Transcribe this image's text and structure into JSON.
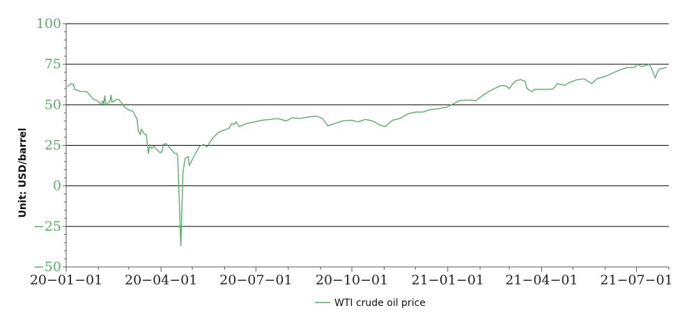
{
  "colors": {
    "series": "#5aaa6a",
    "gridline": "#000000",
    "axis": "#555555",
    "tick_label_y": "#5aaa6a",
    "tick_label_x": "#222222"
  },
  "chart_data": {
    "type": "line",
    "title": "",
    "xlabel": "",
    "ylabel": "Unit: USD/barrel",
    "ylim": [
      -50,
      100
    ],
    "xlim": [
      "2020-01-01",
      "2021-08-01"
    ],
    "yticks": [
      100,
      75,
      50,
      25,
      0,
      -25,
      -50
    ],
    "ytick_labels": [
      "100",
      "75",
      "50",
      "25",
      "0",
      "−25",
      "−50"
    ],
    "xticks": [
      "2020-01-01",
      "2020-04-01",
      "2020-07-01",
      "2020-10-01",
      "2021-01-01",
      "2021-04-01",
      "2021-07-01"
    ],
    "xtick_labels": [
      "20−01−01",
      "20−04−01",
      "20−07−01",
      "20−10−01",
      "21−01−01",
      "21−04−01",
      "21−07−01"
    ],
    "grid": "horizontal",
    "legend": {
      "position": "bottom-center"
    },
    "series": [
      {
        "name": "WTI crude oil price",
        "points": [
          [
            "2020-01-02",
            61.2
          ],
          [
            "2020-01-06",
            63.0
          ],
          [
            "2020-01-08",
            62.5
          ],
          [
            "2020-01-09",
            59.5
          ],
          [
            "2020-01-15",
            58.2
          ],
          [
            "2020-01-21",
            58.0
          ],
          [
            "2020-01-27",
            53.5
          ],
          [
            "2020-01-31",
            52.5
          ],
          [
            "2020-02-04",
            50.0
          ],
          [
            "2020-02-05",
            52.5
          ],
          [
            "2020-02-06",
            50.5
          ],
          [
            "2020-02-07",
            55.5
          ],
          [
            "2020-02-08",
            50.0
          ],
          [
            "2020-02-12",
            52.0
          ],
          [
            "2020-02-13",
            56.0
          ],
          [
            "2020-02-14",
            51.5
          ],
          [
            "2020-02-19",
            53.5
          ],
          [
            "2020-02-21",
            53.0
          ],
          [
            "2020-02-26",
            48.5
          ],
          [
            "2020-03-02",
            46.5
          ],
          [
            "2020-03-05",
            46.0
          ],
          [
            "2020-03-09",
            41.0
          ],
          [
            "2020-03-10",
            34.5
          ],
          [
            "2020-03-12",
            31.5
          ],
          [
            "2020-03-13",
            35.0
          ],
          [
            "2020-03-16",
            32.0
          ],
          [
            "2020-03-18",
            31.5
          ],
          [
            "2020-03-19",
            24.0
          ],
          [
            "2020-03-20",
            20.0
          ],
          [
            "2020-03-21",
            25.5
          ],
          [
            "2020-03-23",
            23.0
          ],
          [
            "2020-03-25",
            24.5
          ],
          [
            "2020-03-27",
            23.0
          ],
          [
            "2020-03-31",
            20.5
          ],
          [
            "2020-04-02",
            21.0
          ],
          [
            "2020-04-03",
            25.5
          ],
          [
            "2020-04-06",
            26.0
          ],
          [
            "2020-04-08",
            24.5
          ],
          [
            "2020-04-10",
            22.8
          ],
          [
            "2020-04-14",
            20.1
          ],
          [
            "2020-04-16",
            19.9
          ],
          [
            "2020-04-17",
            18.2
          ],
          [
            "2020-04-20",
            -37.0
          ],
          [
            "2020-04-22",
            8.0
          ],
          [
            "2020-04-24",
            16.9
          ],
          [
            "2020-04-27",
            18.0
          ],
          [
            "2020-04-28",
            12.5
          ],
          [
            "2020-04-30",
            15.0
          ],
          [
            "2020-05-04",
            20.0
          ],
          [
            "2020-05-08",
            24.5
          ],
          [
            "2020-05-12",
            25.5
          ],
          [
            "2020-05-15",
            24.0
          ],
          [
            "2020-05-20",
            29.0
          ],
          [
            "2020-05-26",
            33.0
          ],
          [
            "2020-06-01",
            34.5
          ],
          [
            "2020-06-05",
            35.5
          ],
          [
            "2020-06-08",
            38.5
          ],
          [
            "2020-06-10",
            38.0
          ],
          [
            "2020-06-12",
            39.5
          ],
          [
            "2020-06-15",
            36.5
          ],
          [
            "2020-06-22",
            38.5
          ],
          [
            "2020-06-30",
            39.5
          ],
          [
            "2020-07-07",
            40.5
          ],
          [
            "2020-07-15",
            41.0
          ],
          [
            "2020-07-22",
            41.5
          ],
          [
            "2020-07-30",
            40.0
          ],
          [
            "2020-08-05",
            42.0
          ],
          [
            "2020-08-12",
            41.5
          ],
          [
            "2020-08-20",
            42.5
          ],
          [
            "2020-08-28",
            43.0
          ],
          [
            "2020-09-03",
            41.5
          ],
          [
            "2020-09-08",
            37.0
          ],
          [
            "2020-09-15",
            38.5
          ],
          [
            "2020-09-22",
            40.0
          ],
          [
            "2020-09-30",
            40.5
          ],
          [
            "2020-10-07",
            39.5
          ],
          [
            "2020-10-14",
            41.0
          ],
          [
            "2020-10-21",
            40.0
          ],
          [
            "2020-10-28",
            37.5
          ],
          [
            "2020-11-02",
            36.5
          ],
          [
            "2020-11-09",
            40.5
          ],
          [
            "2020-11-16",
            41.5
          ],
          [
            "2020-11-24",
            44.5
          ],
          [
            "2020-12-01",
            45.5
          ],
          [
            "2020-12-08",
            45.5
          ],
          [
            "2020-12-15",
            47.0
          ],
          [
            "2020-12-22",
            47.5
          ],
          [
            "2020-12-31",
            48.5
          ],
          [
            "2021-01-06",
            50.5
          ],
          [
            "2021-01-12",
            52.5
          ],
          [
            "2021-01-20",
            53.0
          ],
          [
            "2021-01-28",
            52.5
          ],
          [
            "2021-02-04",
            56.0
          ],
          [
            "2021-02-10",
            58.5
          ],
          [
            "2021-02-18",
            61.0
          ],
          [
            "2021-02-22",
            62.0
          ],
          [
            "2021-02-26",
            61.5
          ],
          [
            "2021-03-01",
            60.0
          ],
          [
            "2021-03-05",
            63.5
          ],
          [
            "2021-03-08",
            65.0
          ],
          [
            "2021-03-12",
            65.5
          ],
          [
            "2021-03-16",
            64.5
          ],
          [
            "2021-03-18",
            60.0
          ],
          [
            "2021-03-23",
            58.0
          ],
          [
            "2021-03-25",
            59.5
          ],
          [
            "2021-04-05",
            59.5
          ],
          [
            "2021-04-12",
            59.7
          ],
          [
            "2021-04-16",
            63.0
          ],
          [
            "2021-04-23",
            62.0
          ],
          [
            "2021-04-28",
            63.8
          ],
          [
            "2021-05-05",
            65.5
          ],
          [
            "2021-05-12",
            66.0
          ],
          [
            "2021-05-19",
            63.0
          ],
          [
            "2021-05-24",
            66.0
          ],
          [
            "2021-06-01",
            67.5
          ],
          [
            "2021-06-08",
            69.5
          ],
          [
            "2021-06-15",
            71.5
          ],
          [
            "2021-06-22",
            73.0
          ],
          [
            "2021-06-29",
            73.0
          ],
          [
            "2021-07-02",
            75.0
          ],
          [
            "2021-07-06",
            73.5
          ],
          [
            "2021-07-09",
            74.0
          ],
          [
            "2021-07-13",
            75.0
          ],
          [
            "2021-07-15",
            73.0
          ],
          [
            "2021-07-19",
            66.5
          ],
          [
            "2021-07-21",
            70.0
          ],
          [
            "2021-07-23",
            72.0
          ],
          [
            "2021-07-30",
            73.0
          ]
        ]
      }
    ]
  }
}
